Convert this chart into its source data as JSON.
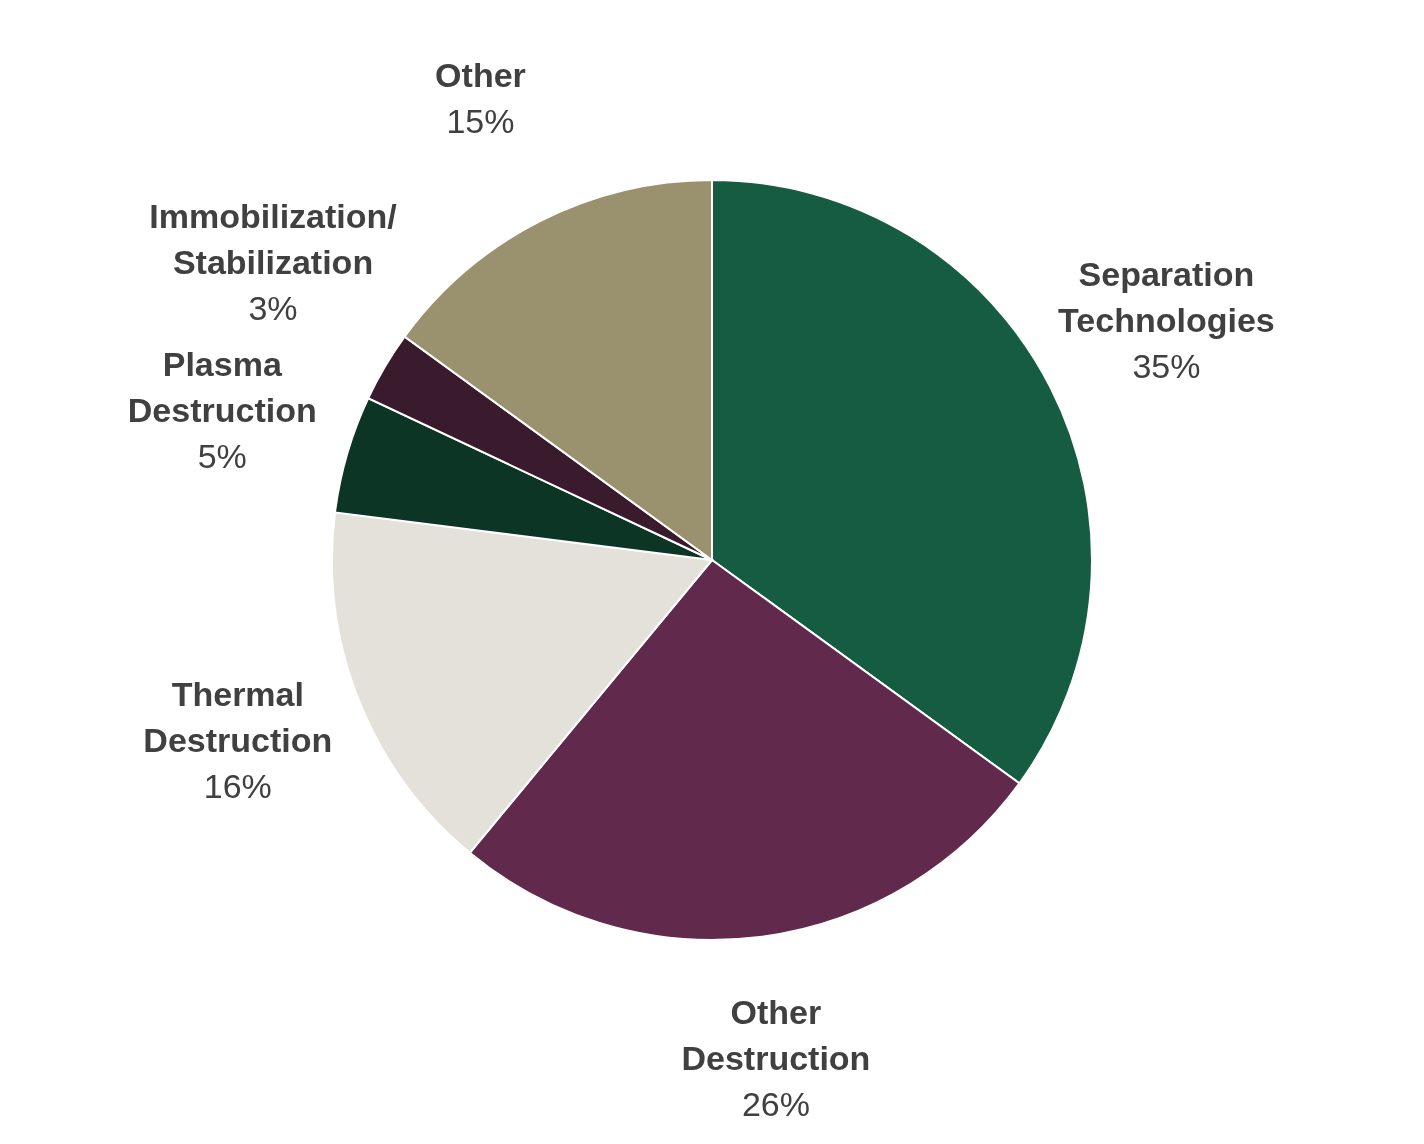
{
  "chart_data": {
    "type": "pie",
    "categories": [
      "Separation Technologies",
      "Other Destruction",
      "Thermal Destruction",
      "Plasma Destruction",
      "Immobilization/Stabilization",
      "Other"
    ],
    "values": [
      35,
      26,
      16,
      5,
      3,
      15
    ],
    "value_labels": [
      "35%",
      "26%",
      "16%",
      "5%",
      "3%",
      "15%"
    ],
    "colors": [
      "#155c43",
      "#61294b",
      "#e3e1da",
      "#0c3526",
      "#3a1a2d",
      "#9a916f"
    ]
  }
}
